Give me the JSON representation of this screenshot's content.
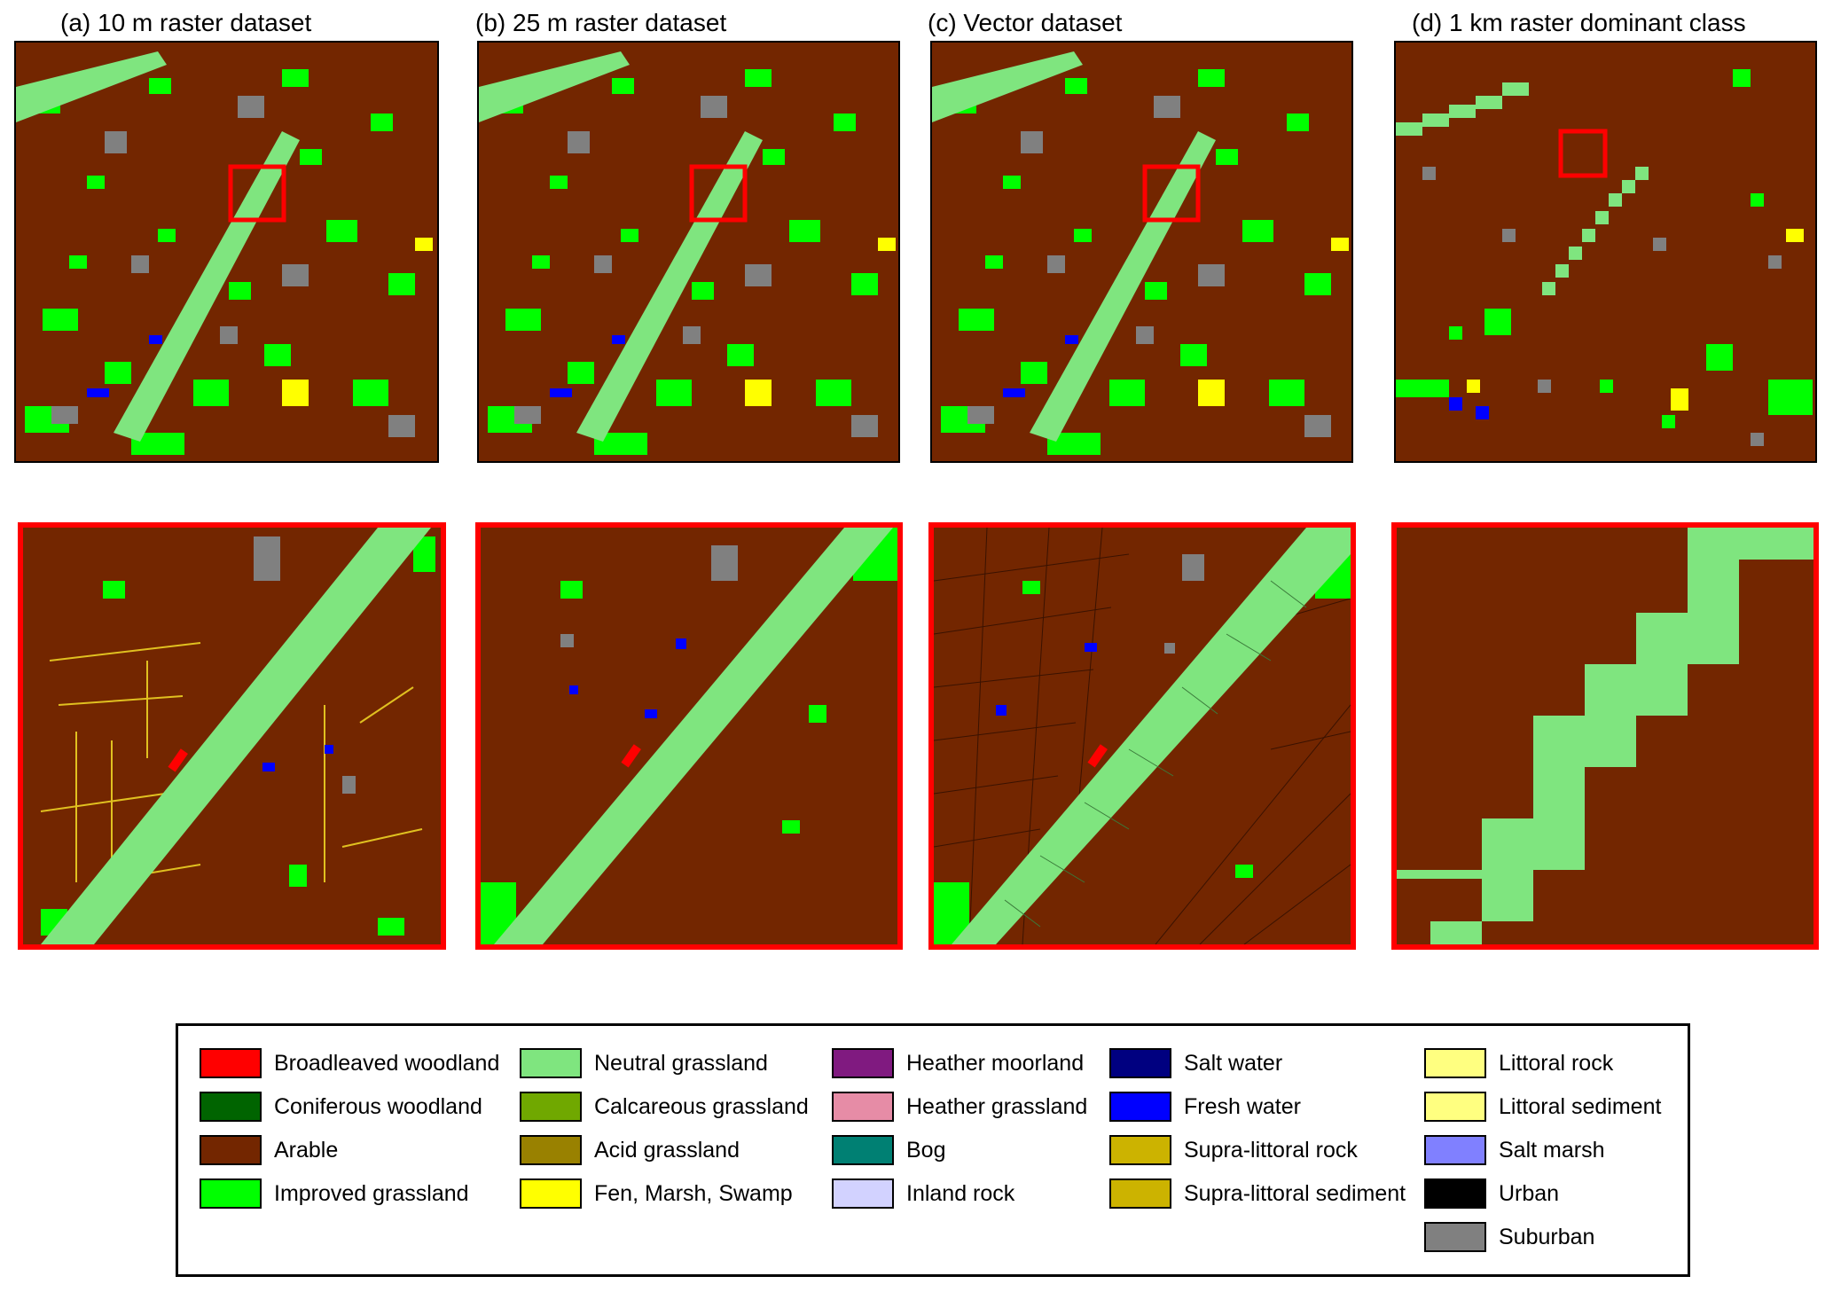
{
  "titles": {
    "a": "(a) 10 m raster dataset",
    "b": "(b) 25 m raster dataset",
    "c": "(c) Vector dataset",
    "d": "(d) 1 km raster dominant class"
  },
  "legend": {
    "columns": [
      [
        {
          "label": "Broadleaved woodland",
          "color": "#ff0000"
        },
        {
          "label": "Coniferous woodland",
          "color": "#006400"
        },
        {
          "label": "Arable",
          "color": "#732600"
        },
        {
          "label": "Improved grassland",
          "color": "#00ff00"
        }
      ],
      [
        {
          "label": "Neutral grassland",
          "color": "#7fe57f"
        },
        {
          "label": "Calcareous grassland",
          "color": "#70a800"
        },
        {
          "label": "Acid grassland",
          "color": "#998100"
        },
        {
          "label": "Fen, Marsh, Swamp",
          "color": "#ffff00"
        }
      ],
      [
        {
          "label": "Heather moorland",
          "color": "#801a80"
        },
        {
          "label": "Heather grassland",
          "color": "#e68ca6"
        },
        {
          "label": "Bog",
          "color": "#008073"
        },
        {
          "label": "Inland rock",
          "color": "#d2d2ff"
        }
      ],
      [
        {
          "label": "Salt water",
          "color": "#000080"
        },
        {
          "label": "Fresh water",
          "color": "#0000ff"
        },
        {
          "label": "Supra-littoral rock",
          "color": "#ccb300"
        },
        {
          "label": "Supra-littoral sediment",
          "color": "#ccb300"
        }
      ],
      [
        {
          "label": "Littoral rock",
          "color": "#ffff80"
        },
        {
          "label": "Littoral sediment",
          "color": "#ffff80"
        },
        {
          "label": "Salt marsh",
          "color": "#8080ff"
        },
        {
          "label": "Urban",
          "color": "#000000"
        },
        {
          "label": "Suburban",
          "color": "#808080"
        }
      ]
    ]
  }
}
